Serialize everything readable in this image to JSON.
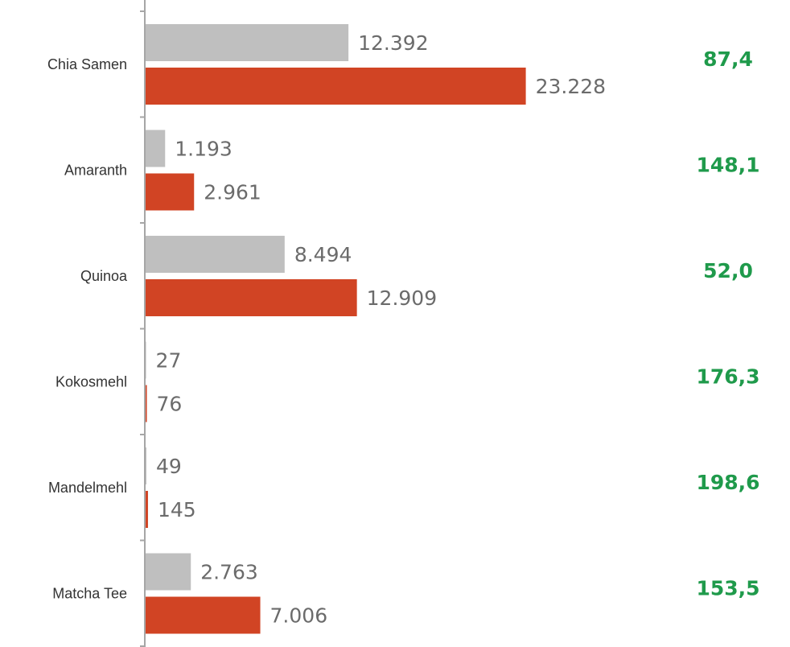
{
  "chart_data": {
    "type": "bar",
    "orientation": "horizontal",
    "categories": [
      "Chia Samen",
      "Amaranth",
      "Quinoa",
      "Kokosmehl",
      "Mandelmehl",
      "Matcha Tee"
    ],
    "series": [
      {
        "color": "#bfbfbf",
        "values": [
          12392,
          1193,
          8494,
          27,
          49,
          2763
        ],
        "value_labels": [
          "12.392",
          "1.193",
          "8.494",
          "27",
          "49",
          "2.763"
        ]
      },
      {
        "color": "#d14424",
        "values": [
          23228,
          2961,
          12909,
          76,
          145,
          7006
        ],
        "value_labels": [
          "23.228",
          "2.961",
          "12.909",
          "76",
          "145",
          "7.006"
        ]
      }
    ],
    "change": {
      "color": "#1f9a4b",
      "values": [
        87.4,
        148.1,
        52.0,
        176.3,
        198.6,
        153.5
      ],
      "labels": [
        "87,4",
        "148,1",
        "52,0",
        "176,3",
        "198,6",
        "153,5"
      ]
    },
    "xlim": [
      0,
      26000
    ],
    "grid": false,
    "legend": "none"
  }
}
